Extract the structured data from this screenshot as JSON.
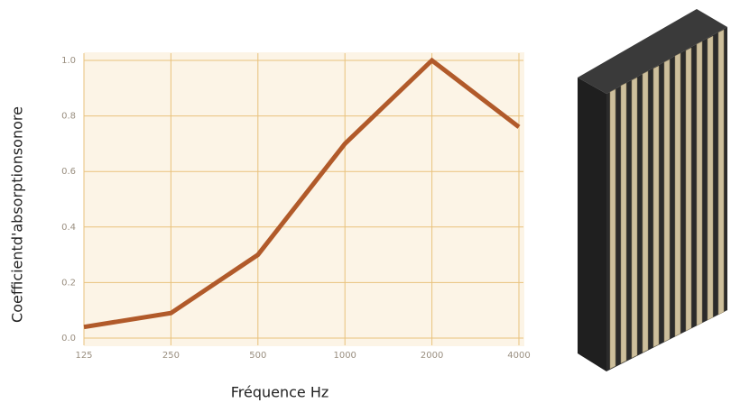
{
  "chart_data": {
    "type": "line",
    "x_label": "Fréquence Hz",
    "y_label": "Coefficientd'absorptionsonore",
    "categories": [
      "125",
      "250",
      "500",
      "1000",
      "2000",
      "4000"
    ],
    "values": [
      0.04,
      0.09,
      0.3,
      0.7,
      1.0,
      0.76
    ],
    "color": "#b15a2a",
    "ylim": [
      0,
      1
    ],
    "yticks": [
      {
        "value": 0,
        "label": "0.0"
      },
      0.2,
      0.4,
      0.6,
      0.8,
      {
        "value": 1,
        "label": "1.0"
      }
    ],
    "grid": true
  }
}
